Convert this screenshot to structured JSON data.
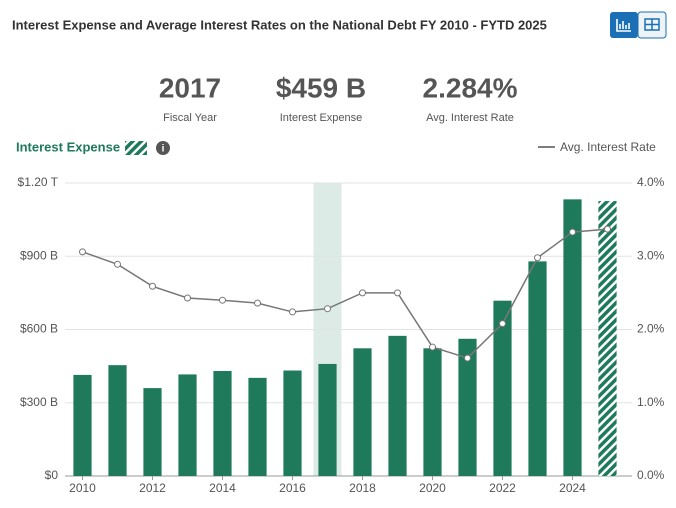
{
  "title": "Interest Expense and Average Interest Rates on the National Debt FY 2010 - FYTD 2025",
  "stats": [
    {
      "value": "2017",
      "label": "Fiscal Year"
    },
    {
      "value": "$459 B",
      "label": "Interest Expense"
    },
    {
      "value": "2.284%",
      "label": "Avg. Interest Rate"
    }
  ],
  "chart_data": {
    "type": "bar_line",
    "x": [
      2010,
      2011,
      2012,
      2013,
      2014,
      2015,
      2016,
      2017,
      2018,
      2019,
      2020,
      2021,
      2022,
      2023,
      2024,
      2025
    ],
    "series": [
      {
        "name": "Interest Expense",
        "color": "#1f7a5c",
        "values": [
          414,
          454,
          360,
          416,
          430,
          402,
          432,
          459,
          523,
          574,
          523,
          562,
          718,
          879,
          1133,
          1126
        ]
      },
      {
        "name": "Avg. Interest Rate",
        "color": "#777777",
        "axis": "y2",
        "values": [
          3.06,
          2.89,
          2.59,
          2.43,
          2.4,
          2.36,
          2.24,
          2.284,
          2.5,
          2.5,
          1.76,
          1.61,
          2.08,
          2.98,
          3.33,
          3.37
        ]
      }
    ],
    "xlim": [
      2009.5,
      2025.7
    ],
    "xticks": [
      2010,
      2012,
      2014,
      2016,
      2018,
      2020,
      2022,
      2024
    ],
    "ylim": [
      0,
      1200
    ],
    "yticks": [
      {
        "value": 0,
        "label": "$0"
      },
      {
        "value": 300,
        "label": "$300 B"
      },
      {
        "value": 600,
        "label": "$600 B"
      },
      {
        "value": 900,
        "label": "$900 B"
      },
      {
        "value": 1200,
        "label": "$1.20 T"
      }
    ],
    "y2lim": [
      0,
      4
    ],
    "y2ticks": [
      {
        "value": 0,
        "label": "0.0%"
      },
      {
        "value": 1,
        "label": "1.0%"
      },
      {
        "value": 2,
        "label": "2.0%"
      },
      {
        "value": 3,
        "label": "3.0%"
      },
      {
        "value": 4,
        "label": "4.0%"
      }
    ],
    "highlight_x": 2017,
    "hatched_x": 2025,
    "grid": true
  }
}
